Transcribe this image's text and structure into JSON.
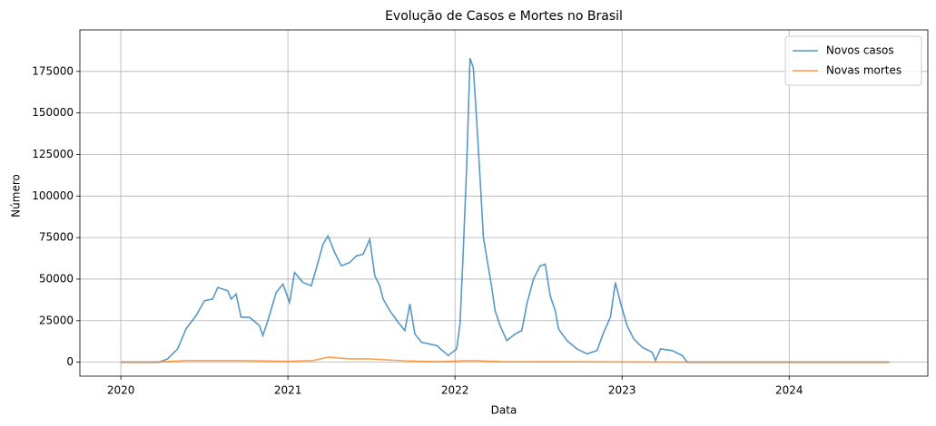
{
  "chart_data": {
    "type": "line",
    "title": "Evolução de Casos e Mortes no Brasil",
    "xlabel": "Data",
    "ylabel": "Número",
    "xlim": [
      2019.755,
      2024.83
    ],
    "xticks": [
      2020,
      2021,
      2022,
      2023,
      2024
    ],
    "ylim": [
      -8400,
      200000
    ],
    "yticks": [
      0,
      25000,
      50000,
      75000,
      100000,
      125000,
      150000,
      175000
    ],
    "grid": true,
    "legend": "upper right",
    "series": [
      {
        "name": "Novos casos",
        "color": "#1f77b4",
        "x": [
          2020.0,
          2020.23,
          2020.28,
          2020.34,
          2020.39,
          2020.45,
          2020.5,
          2020.55,
          2020.58,
          2020.64,
          2020.66,
          2020.69,
          2020.72,
          2020.77,
          2020.83,
          2020.85,
          2020.88,
          2020.93,
          2020.97,
          2021.01,
          2021.04,
          2021.09,
          2021.14,
          2021.18,
          2021.21,
          2021.24,
          2021.28,
          2021.32,
          2021.37,
          2021.41,
          2021.45,
          2021.49,
          2021.52,
          2021.55,
          2021.57,
          2021.61,
          2021.66,
          2021.7,
          2021.73,
          2021.76,
          2021.8,
          2021.89,
          2021.96,
          2022.01,
          2022.03,
          2022.05,
          2022.07,
          2022.09,
          2022.11,
          2022.13,
          2022.15,
          2022.17,
          2022.2,
          2022.22,
          2022.24,
          2022.27,
          2022.31,
          2022.36,
          2022.4,
          2022.43,
          2022.47,
          2022.51,
          2022.54,
          2022.57,
          2022.6,
          2022.62,
          2022.67,
          2022.73,
          2022.79,
          2022.85,
          2022.89,
          2022.93,
          2022.96,
          2022.99,
          2023.03,
          2023.07,
          2023.12,
          2023.18,
          2023.2,
          2023.23,
          2023.3,
          2023.36,
          2023.39,
          2024.6
        ],
        "values": [
          0,
          0,
          2000,
          8000,
          20000,
          28000,
          37000,
          38000,
          45000,
          43000,
          38000,
          41000,
          27000,
          27000,
          22000,
          16000,
          25000,
          42000,
          47000,
          36000,
          54000,
          48000,
          46000,
          60000,
          71000,
          76000,
          66000,
          58000,
          60000,
          64000,
          65000,
          74000,
          52000,
          46000,
          38000,
          31000,
          24000,
          19000,
          35000,
          17000,
          12000,
          10000,
          4000,
          8000,
          23000,
          68000,
          118000,
          183000,
          177000,
          145000,
          111000,
          75000,
          57000,
          45000,
          31000,
          22000,
          13000,
          17000,
          19000,
          35000,
          50000,
          58000,
          59000,
          40000,
          31000,
          20000,
          13000,
          8000,
          5000,
          7000,
          18000,
          27000,
          48000,
          36000,
          22000,
          14000,
          9000,
          6000,
          1000,
          8000,
          7000,
          4000,
          0,
          0
        ]
      },
      {
        "name": "Novas mortes",
        "color": "#ff7f0e",
        "x": [
          2020.0,
          2020.2,
          2020.4,
          2020.7,
          2021.0,
          2021.15,
          2021.24,
          2021.37,
          2021.48,
          2021.7,
          2021.9,
          2022.1,
          2022.3,
          2022.55,
          2023.4,
          2024.6
        ],
        "values": [
          0,
          0,
          1000,
          1000,
          500,
          1000,
          3000,
          2000,
          2000,
          800,
          300,
          1000,
          200,
          300,
          0,
          0
        ]
      }
    ]
  }
}
